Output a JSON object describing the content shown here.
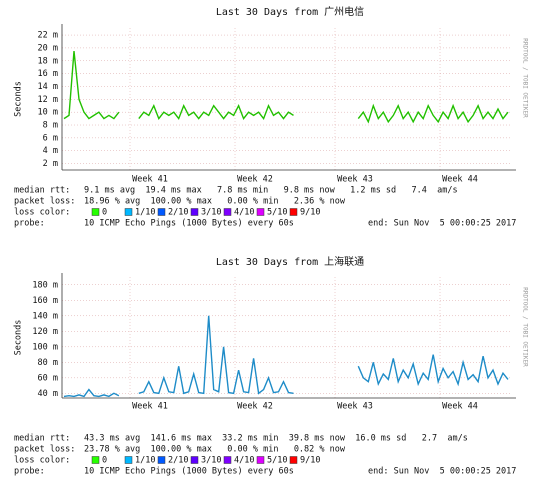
{
  "chart_data": [
    {
      "type": "line",
      "title": "Last 30 Days from 广州电信",
      "ylabel": "Seconds",
      "watermark": "RRDTOOL / TOBI OETIKER",
      "x_labels": [
        "Week 41",
        "Week 42",
        "Week 43",
        "Week 44"
      ],
      "ylim": [
        1,
        23.1
      ],
      "yticks": [
        {
          "value": 2,
          "label": "2 m"
        },
        {
          "value": 4,
          "label": "4 m"
        },
        {
          "value": 6,
          "label": "6 m"
        },
        {
          "value": 8,
          "label": "8 m"
        },
        {
          "value": 10,
          "label": "10 m"
        },
        {
          "value": 12,
          "label": "12 m"
        },
        {
          "value": 14,
          "label": "14 m"
        },
        {
          "value": 16,
          "label": "16 m"
        },
        {
          "value": 18,
          "label": "18 m"
        },
        {
          "value": 20,
          "label": "20 m"
        },
        {
          "value": 22,
          "label": "22 m"
        }
      ],
      "grid": true,
      "series": [
        {
          "color": "#22c000",
          "values": [
            9,
            9.5,
            19.5,
            12,
            10,
            9,
            9.5,
            10,
            9,
            9.5,
            9,
            10,
            null,
            null,
            null,
            9,
            10,
            9.5,
            11,
            9,
            10,
            9.5,
            10,
            9,
            11,
            9.5,
            10,
            9,
            10,
            9.5,
            11,
            10,
            9,
            10,
            9.5,
            11,
            9,
            10,
            9.5,
            10,
            9,
            11,
            9.5,
            10,
            9,
            10,
            9.5,
            null,
            null,
            null,
            null,
            null,
            null,
            null,
            null,
            null,
            null,
            null,
            null,
            9,
            10,
            8.5,
            11,
            9,
            10,
            8.5,
            9.5,
            11,
            9,
            10,
            8.5,
            10,
            9,
            11,
            9.5,
            8.5,
            10,
            9,
            11,
            9,
            10,
            8.5,
            9.5,
            11,
            9,
            10,
            9,
            10.5,
            9,
            10
          ]
        }
      ],
      "stats": [
        {
          "label": "median rtt:",
          "text": "9.1 ms avg  19.4 ms max   7.8 ms min   9.8 ms now   1.2 ms sd   7.4  am/s"
        },
        {
          "label": "packet loss:",
          "text": "18.96 % avg  100.00 % max   0.00 % min   2.36 % now"
        }
      ],
      "loss_color_label": "loss color:",
      "loss_colors": [
        {
          "name": "0",
          "color": "#26ff00"
        },
        {
          "name": "1/10",
          "color": "#00b8ff"
        },
        {
          "name": "2/10",
          "color": "#0059ff"
        },
        {
          "name": "3/10",
          "color": "#5e00ff"
        },
        {
          "name": "4/10",
          "color": "#7e00ff"
        },
        {
          "name": "5/10",
          "color": "#dd00ff"
        },
        {
          "name": "9/10",
          "color": "#ff0000"
        }
      ],
      "probe_label": "probe:",
      "probe": "10 ICMP Echo Pings (1000 Bytes) every 60s",
      "end": "end: Sun Nov  5 00:00:25 2017"
    },
    {
      "type": "line",
      "title": "Last 30 Days from 上海联通",
      "ylabel": "Seconds",
      "watermark": "RRDTOOL / TOBI OETIKER",
      "x_labels": [
        "Week 41",
        "Week 42",
        "Week 43",
        "Week 44"
      ],
      "ylim": [
        34,
        190
      ],
      "yticks": [
        {
          "value": 40,
          "label": "40 m"
        },
        {
          "value": 60,
          "label": "60 m"
        },
        {
          "value": 80,
          "label": "80 m"
        },
        {
          "value": 100,
          "label": "100 m"
        },
        {
          "value": 120,
          "label": "120 m"
        },
        {
          "value": 140,
          "label": "140 m"
        },
        {
          "value": 160,
          "label": "160 m"
        },
        {
          "value": 180,
          "label": "180 m"
        }
      ],
      "grid": true,
      "series": [
        {
          "color": "#1e8cc8",
          "values": [
            36,
            37,
            36,
            38,
            36,
            45,
            37,
            36,
            38,
            36,
            40,
            37,
            null,
            null,
            null,
            40,
            42,
            55,
            41,
            40,
            60,
            42,
            41,
            75,
            40,
            42,
            65,
            41,
            40,
            140,
            45,
            42,
            100,
            41,
            40,
            70,
            42,
            41,
            85,
            40,
            45,
            60,
            41,
            42,
            55,
            41,
            40,
            null,
            null,
            null,
            null,
            null,
            null,
            null,
            null,
            null,
            null,
            null,
            null,
            75,
            60,
            55,
            80,
            52,
            65,
            58,
            85,
            55,
            70,
            60,
            78,
            52,
            66,
            58,
            90,
            55,
            72,
            60,
            68,
            52,
            80,
            58,
            64,
            55,
            88,
            60,
            70,
            52,
            66,
            58
          ]
        }
      ],
      "stats": [
        {
          "label": "median rtt:",
          "text": "43.3 ms avg  141.6 ms max  33.2 ms min  39.8 ms now  16.0 ms sd   2.7  am/s"
        },
        {
          "label": "packet loss:",
          "text": "23.78 % avg  100.00 % max   0.00 % min   0.82 % now"
        }
      ],
      "loss_color_label": "loss color:",
      "loss_colors": [
        {
          "name": "0",
          "color": "#26ff00"
        },
        {
          "name": "1/10",
          "color": "#00b8ff"
        },
        {
          "name": "2/10",
          "color": "#0059ff"
        },
        {
          "name": "3/10",
          "color": "#5e00ff"
        },
        {
          "name": "4/10",
          "color": "#7e00ff"
        },
        {
          "name": "5/10",
          "color": "#dd00ff"
        },
        {
          "name": "9/10",
          "color": "#ff0000"
        }
      ],
      "probe_label": "probe:",
      "probe": "10 ICMP Echo Pings (1000 Bytes) every 60s",
      "end": "end: Sun Nov  5 00:00:25 2017"
    }
  ]
}
